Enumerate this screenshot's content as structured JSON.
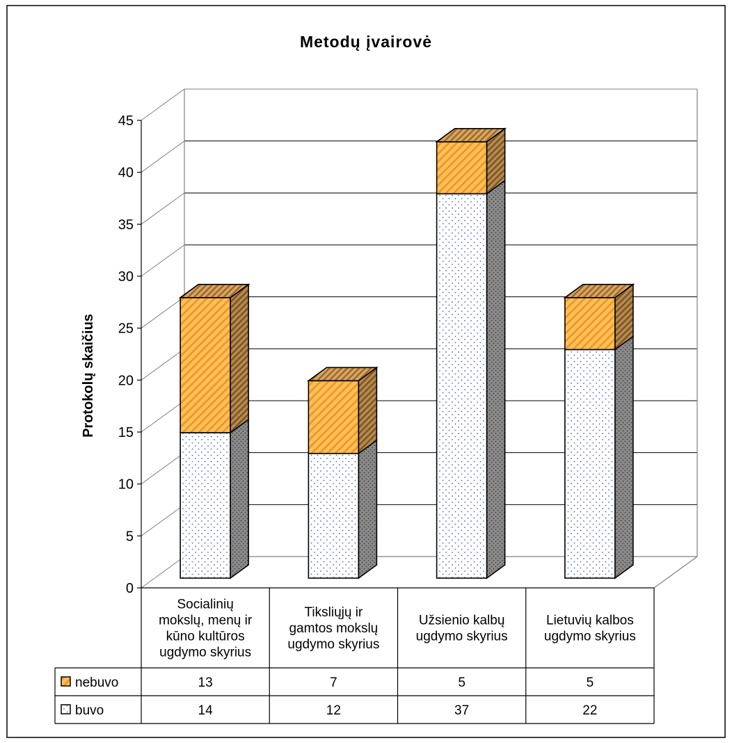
{
  "chart_data": {
    "type": "bar",
    "stacked": true,
    "three_d": true,
    "title": "Metodų įvairovė",
    "xlabel": "",
    "ylabel": "Protokolų skaičius",
    "ylim": [
      0,
      45
    ],
    "yticks": [
      0,
      5,
      10,
      15,
      20,
      25,
      30,
      35,
      40,
      45
    ],
    "grid": true,
    "categories": [
      "Socialinių mokslų, menų ir kūno kultūros ugdymo skyrius",
      "Tiksliųjų ir gamtos mokslų ugdymo skyrius",
      "Užsienio kalbų ugdymo skyrius",
      "Lietuvių kalbos ugdymo skyrius"
    ],
    "category_lines": [
      [
        "Socialinių",
        "mokslų, menų ir",
        "kūno kultūros",
        "ugdymo skyrius"
      ],
      [
        "Tiksliųjų ir",
        "gamtos mokslų",
        "ugdymo skyrius"
      ],
      [
        "Užsienio kalbų",
        "ugdymo skyrius"
      ],
      [
        "Lietuvių kalbos",
        "ugdymo skyrius"
      ]
    ],
    "series": [
      {
        "name": "buvo",
        "values": [
          14,
          12,
          37,
          22
        ],
        "color": "#ffffff",
        "side_color": "#808080",
        "pattern": "dots"
      },
      {
        "name": "nebuvo",
        "values": [
          13,
          7,
          5,
          5
        ],
        "color": "#f9b54c",
        "side_color": "#c08a4a",
        "pattern": "diagonal"
      }
    ],
    "data_table": true
  }
}
